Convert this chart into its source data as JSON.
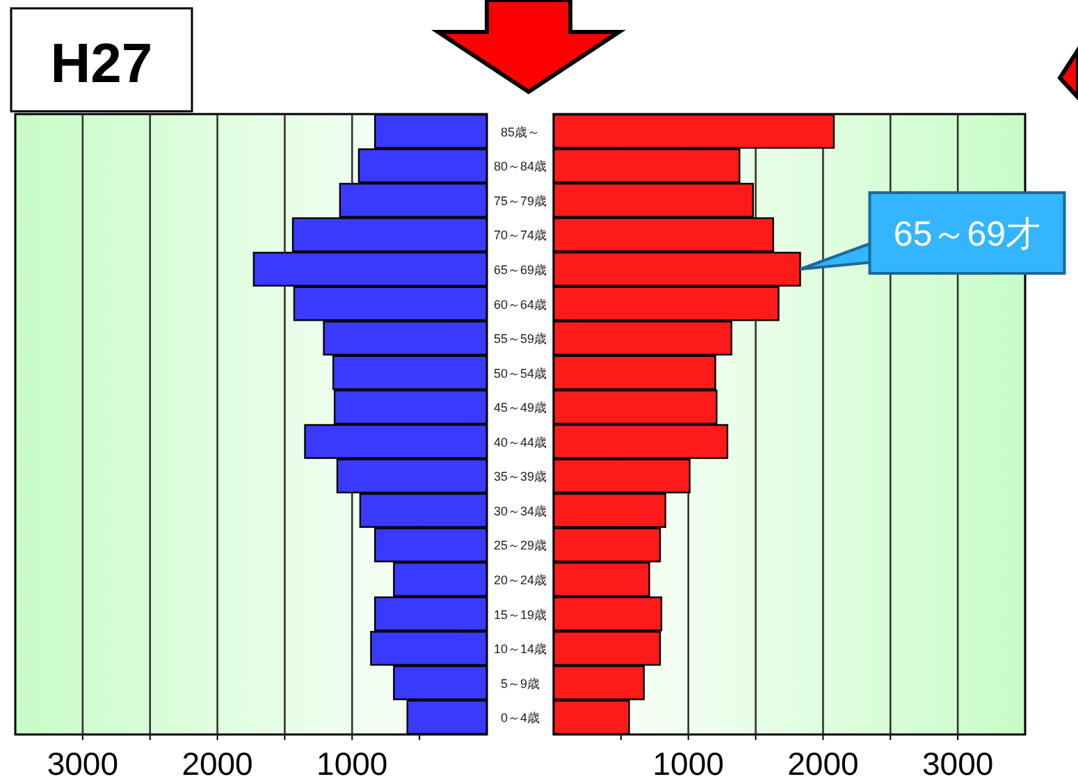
{
  "chart_data": [
    {
      "type": "bar",
      "orientation": "horizontal",
      "title": "H27",
      "categories": [
        null,
        null,
        null,
        null,
        null,
        null,
        null,
        null,
        null,
        null,
        null,
        null,
        null,
        null,
        null,
        null,
        null,
        null
      ],
      "series": [
        {
          "color": "#3a3aff",
          "values": [
            830,
            950,
            1090,
            1440,
            1730,
            1430,
            1210,
            1140,
            1130,
            1350,
            1110,
            940,
            830,
            690,
            830,
            860,
            690,
            590
          ]
        }
      ],
      "xlim": [
        3500,
        0
      ],
      "xticks": [
        {
          "value": 500,
          "label": null
        },
        1000,
        {
          "value": 1500,
          "label": null
        },
        2000,
        {
          "value": 2500,
          "label": null
        },
        3000
      ],
      "grid": "x",
      "tick_labels": "x"
    },
    {
      "type": "bar",
      "orientation": "horizontal",
      "categories": [
        "85歳～",
        "80～84歳",
        "75～79歳",
        "70～74歳",
        "65～69歳",
        "60～64歳",
        "55～59歳",
        "50～54歳",
        "45～49歳",
        "40～44歳",
        "35～39歳",
        "30～34歳",
        "25～29歳",
        "20～24歳",
        "15～19歳",
        "10～14歳",
        "5～9歳",
        "0～4歳"
      ],
      "series": [
        {
          "color": "#ff1a1a",
          "values": [
            2080,
            1380,
            1480,
            1630,
            1830,
            1670,
            1320,
            1200,
            1210,
            1290,
            1010,
            830,
            790,
            710,
            800,
            790,
            670,
            560
          ]
        }
      ],
      "xlim": [
        0,
        3500
      ],
      "xticks": [
        {
          "value": 500,
          "label": null
        },
        1000,
        {
          "value": 1500,
          "label": null
        },
        2000,
        {
          "value": 2500,
          "label": null
        },
        3000
      ],
      "grid": "x",
      "annotations": [
        {
          "text": "65～69才",
          "x": 1830,
          "y": "65～69歳"
        }
      ]
    }
  ]
}
